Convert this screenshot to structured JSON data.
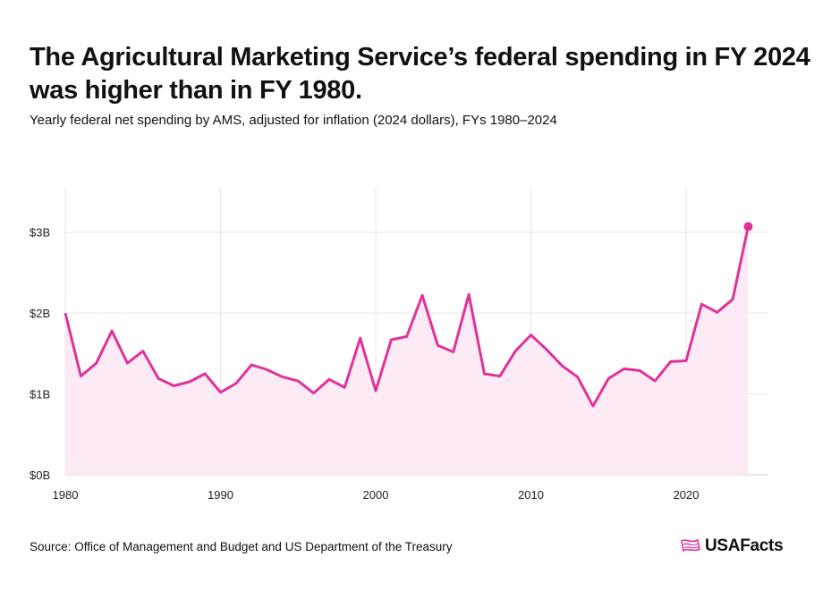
{
  "header": {
    "title": "The Agricultural Marketing Service’s federal spending in FY 2024 was higher than in FY 1980.",
    "subtitle": "Yearly federal net spending by AMS, adjusted for inflation (2024 dollars), FYs 1980–2024"
  },
  "footer": {
    "source": "Source: Office of Management and Budget and US Department of the Treasury",
    "logo_text": "USAFacts"
  },
  "colors": {
    "line": "#e0339a",
    "fill": "#fcebf4",
    "grid": "#e6e6e6"
  },
  "chart_data": {
    "type": "area",
    "x": [
      1980,
      1981,
      1982,
      1983,
      1984,
      1985,
      1986,
      1987,
      1988,
      1989,
      1990,
      1991,
      1992,
      1993,
      1994,
      1995,
      1996,
      1997,
      1998,
      1999,
      2000,
      2001,
      2002,
      2003,
      2004,
      2005,
      2006,
      2007,
      2008,
      2009,
      2010,
      2011,
      2012,
      2013,
      2014,
      2015,
      2016,
      2017,
      2018,
      2019,
      2020,
      2021,
      2022,
      2023,
      2024
    ],
    "series": [
      {
        "values": [
          2.0,
          1.22,
          1.38,
          1.78,
          1.38,
          1.53,
          1.19,
          1.1,
          1.15,
          1.25,
          1.02,
          1.13,
          1.36,
          1.3,
          1.21,
          1.16,
          1.01,
          1.18,
          1.08,
          1.69,
          1.04,
          1.67,
          1.71,
          2.22,
          1.6,
          1.52,
          2.23,
          1.25,
          1.22,
          1.53,
          1.73,
          1.55,
          1.35,
          1.21,
          0.85,
          1.19,
          1.31,
          1.29,
          1.16,
          1.4,
          1.41,
          2.11,
          2.01,
          2.17,
          3.07
        ]
      }
    ],
    "x_ticks": [
      1980,
      1990,
      2000,
      2010,
      2020
    ],
    "x_tick_labels": [
      "1980",
      "1990",
      "2000",
      "2010",
      "2020"
    ],
    "y_ticks": [
      0,
      1,
      2,
      3
    ],
    "y_tick_labels": [
      "$0B",
      "$1B",
      "$2B",
      "$3B"
    ],
    "xlim": [
      1980,
      2025.3
    ],
    "ylim": [
      0,
      3.55
    ],
    "grid": true,
    "highlight_last_point": true
  }
}
